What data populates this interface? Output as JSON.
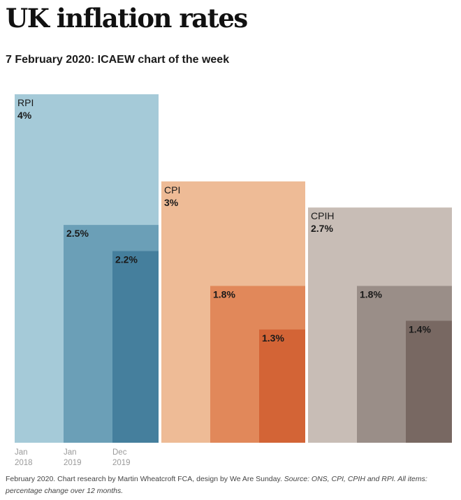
{
  "title": "UK inflation rates",
  "subtitle": "7 February 2020: ICAEW chart of the week",
  "footnote": {
    "credit": "February 2020. Chart research by Martin Wheatcroft FCA, design by We Are Sunday.",
    "source": "Source: ONS, CPI, CPIH and RPI. All items: percentage change over 12 months."
  },
  "chart_data": {
    "type": "bar",
    "title": "UK inflation rates",
    "categories": [
      "Jan 2018",
      "Jan 2019",
      "Dec 2019"
    ],
    "ylim": [
      0,
      4
    ],
    "grid": false,
    "series": [
      {
        "name": "RPI",
        "values": [
          4,
          2.5,
          2.2
        ],
        "labels": [
          "4%",
          "2.5%",
          "2.2%"
        ],
        "colors": [
          "#a5cad8",
          "#6b9fb7",
          "#457f9d"
        ]
      },
      {
        "name": "CPI",
        "values": [
          3,
          1.8,
          1.3
        ],
        "labels": [
          "3%",
          "1.8%",
          "1.3%"
        ],
        "colors": [
          "#eebb96",
          "#e1885a",
          "#d36436"
        ]
      },
      {
        "name": "CPIH",
        "values": [
          2.7,
          1.8,
          1.4
        ],
        "labels": [
          "2.7%",
          "1.8%",
          "1.4%"
        ],
        "colors": [
          "#c8bdb6",
          "#9a8e88",
          "#786862"
        ]
      }
    ],
    "x_axis": {
      "ticks": [
        {
          "month": "Jan",
          "year": "2018"
        },
        {
          "month": "Jan",
          "year": "2019"
        },
        {
          "month": "Dec",
          "year": "2019"
        }
      ]
    }
  }
}
